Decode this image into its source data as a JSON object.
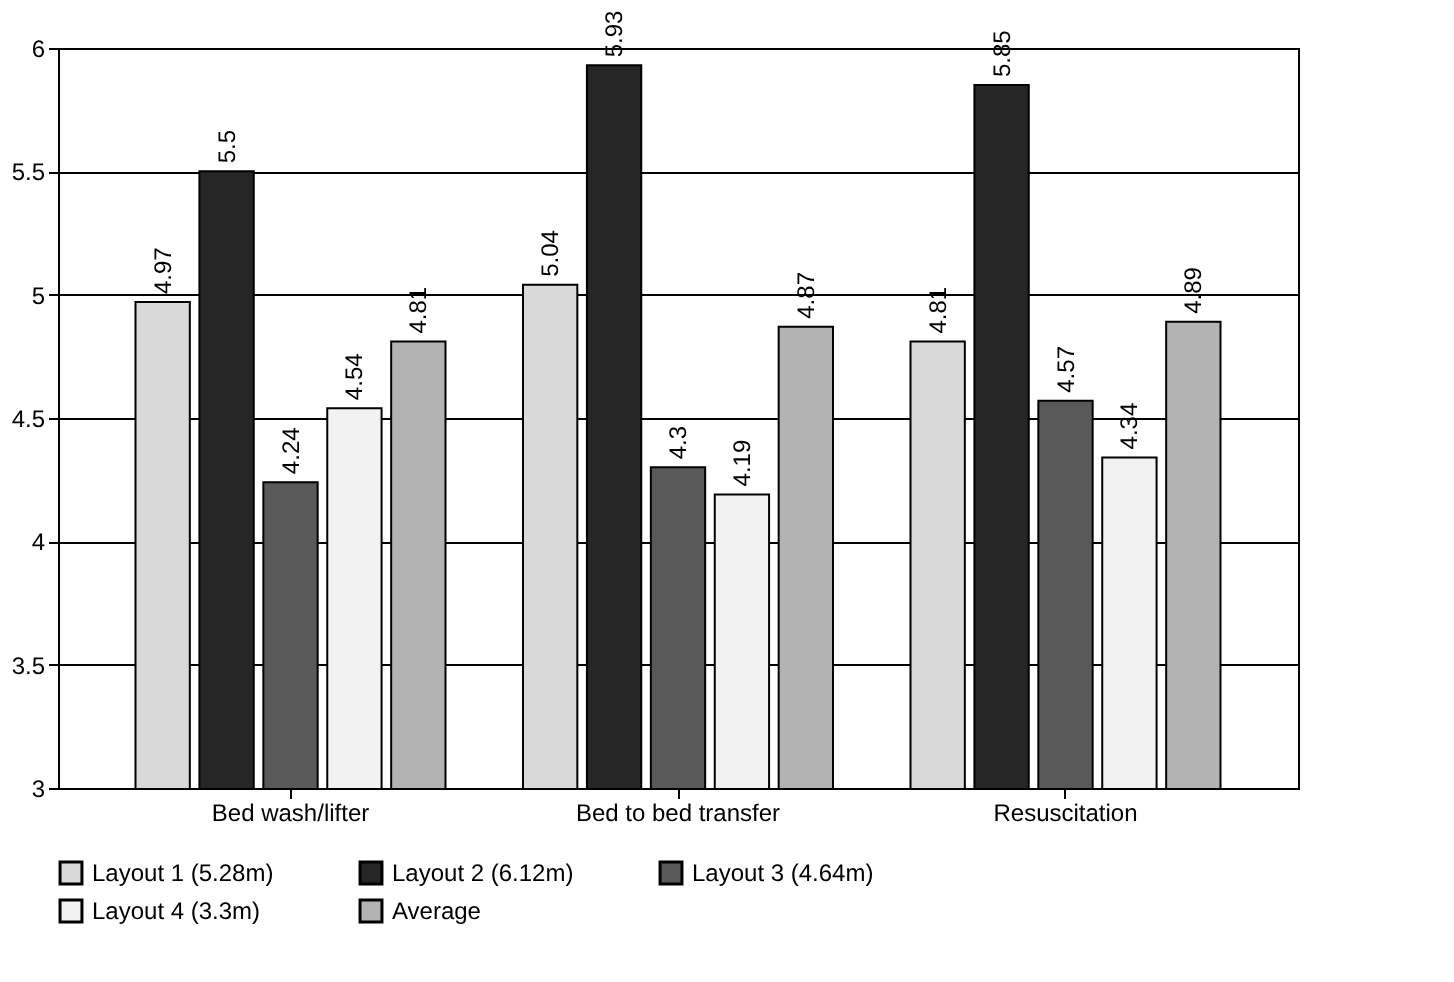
{
  "chart_data": {
    "type": "bar",
    "categories": [
      "Bed wash/lifter",
      "Bed to bed transfer",
      "Resuscitation"
    ],
    "series": [
      {
        "name": "Layout 1 (5.28m)",
        "color": "#d9d9d9",
        "values": [
          4.97,
          5.04,
          4.81
        ]
      },
      {
        "name": "Layout 2 (6.12m)",
        "color": "#262626",
        "values": [
          5.5,
          5.93,
          5.85
        ]
      },
      {
        "name": "Layout 3 (4.64m)",
        "color": "#595959",
        "values": [
          4.24,
          4.3,
          4.57
        ]
      },
      {
        "name": "Layout 4 (3.3m)",
        "color": "#f2f2f2",
        "values": [
          4.54,
          4.19,
          4.34
        ]
      },
      {
        "name": "Average",
        "color": "#b3b3b3",
        "values": [
          4.81,
          4.87,
          4.89
        ]
      }
    ],
    "ylim": [
      3,
      6
    ],
    "yticks": [
      3,
      3.5,
      4,
      4.5,
      5,
      5.5,
      6
    ],
    "grid": "y",
    "legend": "bottom",
    "data_labels": true
  }
}
